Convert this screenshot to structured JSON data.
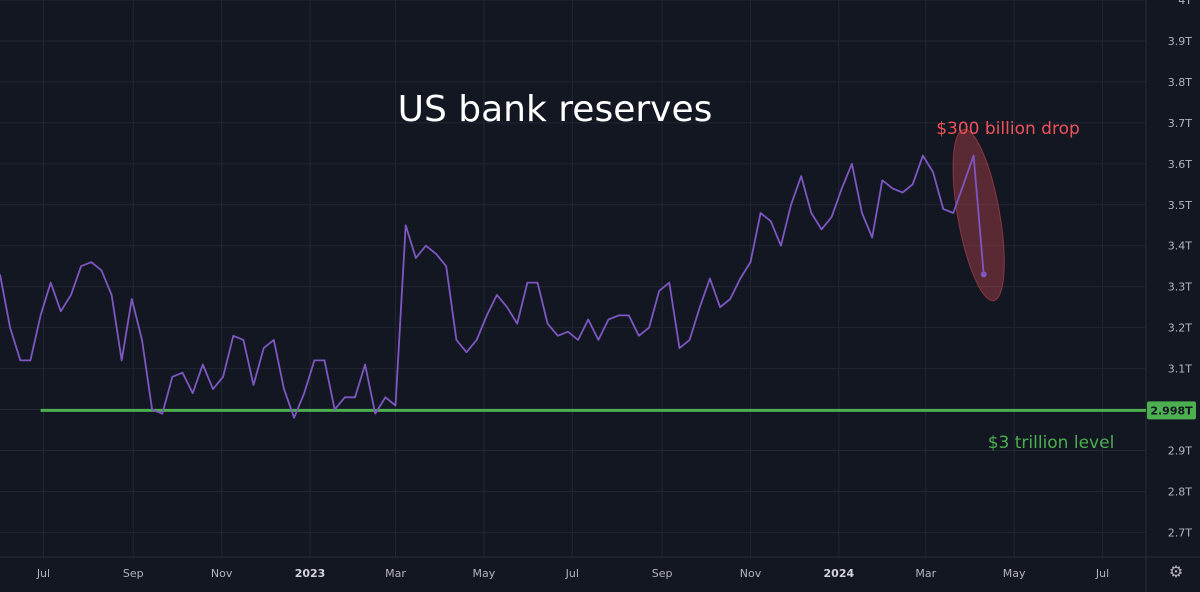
{
  "chart_data": {
    "type": "line",
    "title": "US bank reserves",
    "xlabel": "",
    "ylabel": "",
    "x_range": [
      "2022-06-01",
      "2024-07-31"
    ],
    "ylim": [
      2.64,
      4.0
    ],
    "y_ticks": [
      {
        "value": 2.7,
        "label": "2.7T"
      },
      {
        "value": 2.8,
        "label": "2.8T"
      },
      {
        "value": 2.9,
        "label": "2.9T"
      },
      {
        "value": 3.1,
        "label": "3.1T"
      },
      {
        "value": 3.2,
        "label": "3.2T"
      },
      {
        "value": 3.3,
        "label": "3.3T"
      },
      {
        "value": 3.4,
        "label": "3.4T"
      },
      {
        "value": 3.5,
        "label": "3.5T"
      },
      {
        "value": 3.6,
        "label": "3.6T"
      },
      {
        "value": 3.7,
        "label": "3.7T"
      },
      {
        "value": 3.8,
        "label": "3.8T"
      },
      {
        "value": 3.9,
        "label": "3.9T"
      },
      {
        "value": 4.0,
        "label": "4T"
      }
    ],
    "x_ticks": [
      {
        "date": "2022-07-01",
        "label": "Jul",
        "year": false
      },
      {
        "date": "2022-09-01",
        "label": "Sep",
        "year": false
      },
      {
        "date": "2022-11-01",
        "label": "Nov",
        "year": false
      },
      {
        "date": "2023-01-01",
        "label": "2023",
        "year": true
      },
      {
        "date": "2023-03-01",
        "label": "Mar",
        "year": false
      },
      {
        "date": "2023-05-01",
        "label": "May",
        "year": false
      },
      {
        "date": "2023-07-01",
        "label": "Jul",
        "year": false
      },
      {
        "date": "2023-09-01",
        "label": "Sep",
        "year": false
      },
      {
        "date": "2023-11-01",
        "label": "Nov",
        "year": false
      },
      {
        "date": "2024-01-01",
        "label": "2024",
        "year": true
      },
      {
        "date": "2024-03-01",
        "label": "Mar",
        "year": false
      },
      {
        "date": "2024-05-01",
        "label": "May",
        "year": false
      },
      {
        "date": "2024-07-01",
        "label": "Jul",
        "year": false
      }
    ],
    "grid": true,
    "series": [
      {
        "color": "#7e57c2",
        "points": [
          [
            "2022-06-01",
            3.33
          ],
          [
            "2022-06-08",
            3.2
          ],
          [
            "2022-06-15",
            3.12
          ],
          [
            "2022-06-22",
            3.12
          ],
          [
            "2022-06-29",
            3.23
          ],
          [
            "2022-07-06",
            3.31
          ],
          [
            "2022-07-13",
            3.24
          ],
          [
            "2022-07-20",
            3.28
          ],
          [
            "2022-07-27",
            3.35
          ],
          [
            "2022-08-03",
            3.36
          ],
          [
            "2022-08-10",
            3.34
          ],
          [
            "2022-08-17",
            3.28
          ],
          [
            "2022-08-24",
            3.12
          ],
          [
            "2022-08-31",
            3.27
          ],
          [
            "2022-09-07",
            3.17
          ],
          [
            "2022-09-14",
            3.0
          ],
          [
            "2022-09-21",
            2.99
          ],
          [
            "2022-09-28",
            3.08
          ],
          [
            "2022-10-05",
            3.09
          ],
          [
            "2022-10-12",
            3.04
          ],
          [
            "2022-10-19",
            3.11
          ],
          [
            "2022-10-26",
            3.05
          ],
          [
            "2022-11-02",
            3.08
          ],
          [
            "2022-11-09",
            3.18
          ],
          [
            "2022-11-16",
            3.17
          ],
          [
            "2022-11-23",
            3.06
          ],
          [
            "2022-11-30",
            3.15
          ],
          [
            "2022-12-07",
            3.17
          ],
          [
            "2022-12-14",
            3.05
          ],
          [
            "2022-12-21",
            2.98
          ],
          [
            "2022-12-28",
            3.04
          ],
          [
            "2023-01-04",
            3.12
          ],
          [
            "2023-01-11",
            3.12
          ],
          [
            "2023-01-18",
            3.0
          ],
          [
            "2023-01-25",
            3.03
          ],
          [
            "2023-02-01",
            3.03
          ],
          [
            "2023-02-08",
            3.11
          ],
          [
            "2023-02-15",
            2.99
          ],
          [
            "2023-02-22",
            3.03
          ],
          [
            "2023-03-01",
            3.01
          ],
          [
            "2023-03-08",
            3.45
          ],
          [
            "2023-03-15",
            3.37
          ],
          [
            "2023-03-22",
            3.4
          ],
          [
            "2023-03-29",
            3.38
          ],
          [
            "2023-04-05",
            3.35
          ],
          [
            "2023-04-12",
            3.17
          ],
          [
            "2023-04-19",
            3.14
          ],
          [
            "2023-04-26",
            3.17
          ],
          [
            "2023-05-03",
            3.23
          ],
          [
            "2023-05-10",
            3.28
          ],
          [
            "2023-05-17",
            3.25
          ],
          [
            "2023-05-24",
            3.21
          ],
          [
            "2023-05-31",
            3.31
          ],
          [
            "2023-06-07",
            3.31
          ],
          [
            "2023-06-14",
            3.21
          ],
          [
            "2023-06-21",
            3.18
          ],
          [
            "2023-06-28",
            3.19
          ],
          [
            "2023-07-05",
            3.17
          ],
          [
            "2023-07-12",
            3.22
          ],
          [
            "2023-07-19",
            3.17
          ],
          [
            "2023-07-26",
            3.22
          ],
          [
            "2023-08-02",
            3.23
          ],
          [
            "2023-08-09",
            3.23
          ],
          [
            "2023-08-16",
            3.18
          ],
          [
            "2023-08-23",
            3.2
          ],
          [
            "2023-08-30",
            3.29
          ],
          [
            "2023-09-06",
            3.31
          ],
          [
            "2023-09-13",
            3.15
          ],
          [
            "2023-09-20",
            3.17
          ],
          [
            "2023-09-27",
            3.25
          ],
          [
            "2023-10-04",
            3.32
          ],
          [
            "2023-10-11",
            3.25
          ],
          [
            "2023-10-18",
            3.27
          ],
          [
            "2023-10-25",
            3.32
          ],
          [
            "2023-11-01",
            3.36
          ],
          [
            "2023-11-08",
            3.48
          ],
          [
            "2023-11-15",
            3.46
          ],
          [
            "2023-11-22",
            3.4
          ],
          [
            "2023-11-29",
            3.5
          ],
          [
            "2023-12-06",
            3.57
          ],
          [
            "2023-12-13",
            3.48
          ],
          [
            "2023-12-20",
            3.44
          ],
          [
            "2023-12-27",
            3.47
          ],
          [
            "2024-01-03",
            3.54
          ],
          [
            "2024-01-10",
            3.6
          ],
          [
            "2024-01-17",
            3.48
          ],
          [
            "2024-01-24",
            3.42
          ],
          [
            "2024-01-31",
            3.56
          ],
          [
            "2024-02-07",
            3.54
          ],
          [
            "2024-02-14",
            3.53
          ],
          [
            "2024-02-21",
            3.55
          ],
          [
            "2024-02-28",
            3.62
          ],
          [
            "2024-03-06",
            3.58
          ],
          [
            "2024-03-13",
            3.49
          ],
          [
            "2024-03-20",
            3.48
          ],
          [
            "2024-03-27",
            3.55
          ],
          [
            "2024-04-03",
            3.62
          ],
          [
            "2024-04-10",
            3.33
          ]
        ]
      }
    ],
    "reference_line": {
      "value": 2.998,
      "color": "#4caf50",
      "label": "2.998T",
      "start_date": "2022-06-29"
    },
    "annotations": [
      {
        "text": "$300 billion drop",
        "color": "#f0525a"
      },
      {
        "text": "$3 trillion level",
        "color": "#4caf50"
      }
    ],
    "highlight": {
      "color": "#f0525a"
    }
  },
  "toolbar": {
    "settings_icon": "gear-icon"
  }
}
